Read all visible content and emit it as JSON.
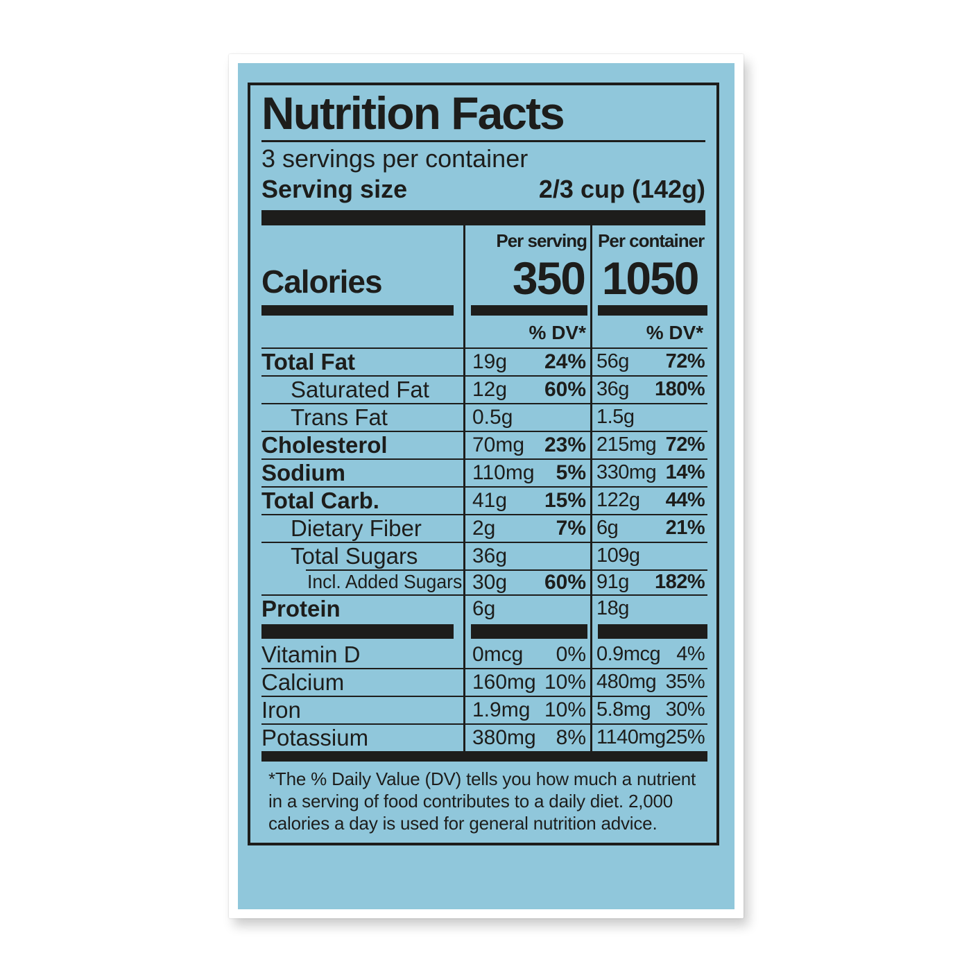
{
  "label": {
    "title": "Nutrition Facts",
    "servings_per_container": "3 servings per container",
    "serving_size": {
      "label": "Serving size",
      "value": "2/3 cup  (142g)"
    },
    "column_headers": {
      "per_serving": "Per serving",
      "per_container": "Per container"
    },
    "calories": {
      "label": "Calories",
      "per_serving": "350",
      "per_container": "1050"
    },
    "dv_header": "% DV*",
    "rows": [
      {
        "label": "Total Fat",
        "ps_amt": "19g",
        "ps_dv": "24%",
        "pc_amt": "56g",
        "pc_dv": "72%"
      },
      {
        "label": "Saturated Fat",
        "ps_amt": "12g",
        "ps_dv": "60%",
        "pc_amt": "36g",
        "pc_dv": "180%"
      },
      {
        "label": "Trans Fat",
        "ps_amt": "0.5g",
        "ps_dv": "",
        "pc_amt": "1.5g",
        "pc_dv": ""
      },
      {
        "label": "Cholesterol",
        "ps_amt": "70mg",
        "ps_dv": "23%",
        "pc_amt": "215mg",
        "pc_dv": "72%"
      },
      {
        "label": "Sodium",
        "ps_amt": "110mg",
        "ps_dv": "5%",
        "pc_amt": "330mg",
        "pc_dv": "14%"
      },
      {
        "label": "Total Carb.",
        "ps_amt": "41g",
        "ps_dv": "15%",
        "pc_amt": "122g",
        "pc_dv": "44%"
      },
      {
        "label": "Dietary Fiber",
        "ps_amt": "2g",
        "ps_dv": "7%",
        "pc_amt": "6g",
        "pc_dv": "21%"
      },
      {
        "label": "Total Sugars",
        "ps_amt": "36g",
        "ps_dv": "",
        "pc_amt": "109g",
        "pc_dv": ""
      },
      {
        "label": "Incl. Added Sugars",
        "ps_amt": "30g",
        "ps_dv": "60%",
        "pc_amt": "91g",
        "pc_dv": "182%"
      },
      {
        "label": "Protein",
        "ps_amt": "6g",
        "ps_dv": "",
        "pc_amt": "18g",
        "pc_dv": ""
      }
    ],
    "vitamins": [
      {
        "label": "Vitamin D",
        "ps_amt": "0mcg",
        "ps_dv": "0%",
        "pc_amt": "0.9mcg",
        "pc_dv": "4%"
      },
      {
        "label": "Calcium",
        "ps_amt": "160mg",
        "ps_dv": "10%",
        "pc_amt": "480mg",
        "pc_dv": "35%"
      },
      {
        "label": "Iron",
        "ps_amt": "1.9mg",
        "ps_dv": "10%",
        "pc_amt": "5.8mg",
        "pc_dv": "30%"
      },
      {
        "label": "Potassium",
        "ps_amt": "380mg",
        "ps_dv": "8%",
        "pc_amt": "1140mg",
        "pc_dv": "25%"
      }
    ],
    "footnote_lines": [
      "*The % Daily Value (DV) tells you how much a nutrient",
      "in a serving of food contributes to a daily diet. 2,000",
      "calories a day is used for general nutrition advice."
    ],
    "colors": {
      "label_blue": "#90c7db",
      "ink": "#1d1d1b",
      "sticker": "#ffffff"
    }
  }
}
